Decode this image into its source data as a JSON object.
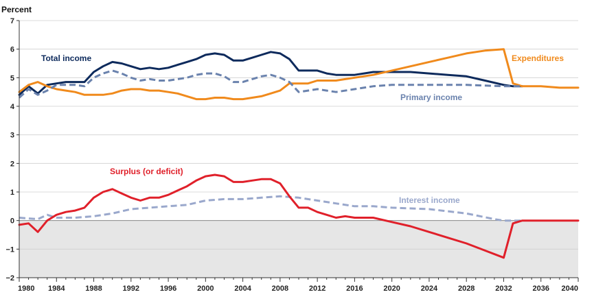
{
  "chart_data": {
    "type": "line",
    "ylabel": "Percent",
    "xlim": [
      1980,
      2040
    ],
    "ylim": [
      -2,
      7
    ],
    "xticks": [
      "1980",
      "1984",
      "1988",
      "1992",
      "1996",
      "2000",
      "2004",
      "2008",
      "2012",
      "2016",
      "2020",
      "2024",
      "2028",
      "2032",
      "2036",
      "2040"
    ],
    "yticks": [
      "−2",
      "−1",
      "0",
      "1",
      "2",
      "3",
      "4",
      "5",
      "6",
      "7"
    ],
    "shaded_negative_region": true,
    "series": [
      {
        "name": "Total income",
        "color": "#0d2a5c",
        "style": "solid",
        "x": [
          1980,
          1981,
          1982,
          1983,
          1984,
          1985,
          1986,
          1987,
          1988,
          1989,
          1990,
          1991,
          1992,
          1993,
          1994,
          1995,
          1996,
          1997,
          1998,
          1999,
          2000,
          2001,
          2002,
          2003,
          2004,
          2005,
          2006,
          2007,
          2008,
          2009,
          2010,
          2011,
          2012,
          2013,
          2014,
          2015,
          2016,
          2017,
          2018,
          2019,
          2020,
          2022,
          2024,
          2026,
          2028,
          2030,
          2032,
          2033,
          2034
        ],
        "values": [
          4.4,
          4.7,
          4.45,
          4.75,
          4.8,
          4.85,
          4.85,
          4.85,
          5.2,
          5.4,
          5.55,
          5.5,
          5.4,
          5.3,
          5.35,
          5.3,
          5.35,
          5.45,
          5.55,
          5.65,
          5.8,
          5.85,
          5.8,
          5.6,
          5.6,
          5.7,
          5.8,
          5.9,
          5.85,
          5.65,
          5.25,
          5.25,
          5.25,
          5.15,
          5.1,
          5.1,
          5.1,
          5.15,
          5.2,
          5.2,
          5.2,
          5.2,
          5.15,
          5.1,
          5.05,
          4.9,
          4.75,
          4.7,
          4.7
        ]
      },
      {
        "name": "Expenditures",
        "color": "#f08a1c",
        "style": "solid",
        "x": [
          1980,
          1981,
          1982,
          1983,
          1984,
          1985,
          1986,
          1987,
          1988,
          1989,
          1990,
          1991,
          1992,
          1993,
          1994,
          1995,
          1996,
          1997,
          1998,
          1999,
          2000,
          2001,
          2002,
          2003,
          2004,
          2005,
          2006,
          2007,
          2008,
          2009,
          2010,
          2011,
          2012,
          2013,
          2014,
          2015,
          2016,
          2018,
          2020,
          2022,
          2024,
          2026,
          2028,
          2030,
          2032,
          2033,
          2034,
          2036,
          2038,
          2040
        ],
        "values": [
          4.5,
          4.75,
          4.85,
          4.7,
          4.6,
          4.55,
          4.5,
          4.4,
          4.4,
          4.4,
          4.45,
          4.55,
          4.6,
          4.6,
          4.55,
          4.55,
          4.5,
          4.45,
          4.35,
          4.25,
          4.25,
          4.3,
          4.3,
          4.25,
          4.25,
          4.3,
          4.35,
          4.45,
          4.55,
          4.8,
          4.8,
          4.8,
          4.9,
          4.9,
          4.9,
          4.95,
          5.0,
          5.1,
          5.25,
          5.4,
          5.55,
          5.7,
          5.85,
          5.95,
          6.0,
          4.8,
          4.7,
          4.7,
          4.65,
          4.65
        ]
      },
      {
        "name": "Primary income",
        "color": "#6a82ad",
        "style": "dashed",
        "x": [
          1980,
          1981,
          1982,
          1983,
          1984,
          1985,
          1986,
          1987,
          1988,
          1989,
          1990,
          1991,
          1992,
          1993,
          1994,
          1995,
          1996,
          1997,
          1998,
          1999,
          2000,
          2001,
          2002,
          2003,
          2004,
          2005,
          2006,
          2007,
          2008,
          2009,
          2010,
          2011,
          2012,
          2013,
          2014,
          2016,
          2018,
          2020,
          2024,
          2028,
          2032,
          2034
        ],
        "values": [
          4.3,
          4.6,
          4.4,
          4.55,
          4.75,
          4.75,
          4.75,
          4.7,
          5.0,
          5.15,
          5.25,
          5.15,
          5.0,
          4.9,
          4.95,
          4.9,
          4.9,
          4.95,
          5.0,
          5.1,
          5.15,
          5.15,
          5.05,
          4.85,
          4.85,
          4.95,
          5.05,
          5.1,
          5.0,
          4.85,
          4.5,
          4.55,
          4.6,
          4.55,
          4.5,
          4.6,
          4.7,
          4.75,
          4.75,
          4.75,
          4.7,
          4.7
        ]
      },
      {
        "name": "Interest income",
        "color": "#9aa8cc",
        "style": "dashed",
        "x": [
          1980,
          1982,
          1983,
          1984,
          1986,
          1988,
          1990,
          1992,
          1994,
          1996,
          1998,
          2000,
          2002,
          2004,
          2006,
          2008,
          2010,
          2012,
          2014,
          2016,
          2018,
          2020,
          2024,
          2028,
          2031,
          2032,
          2033,
          2034
        ],
        "values": [
          0.1,
          0.05,
          0.2,
          0.1,
          0.1,
          0.15,
          0.25,
          0.4,
          0.45,
          0.5,
          0.55,
          0.7,
          0.75,
          0.75,
          0.8,
          0.85,
          0.8,
          0.7,
          0.6,
          0.5,
          0.5,
          0.45,
          0.4,
          0.25,
          0.05,
          0.0,
          0.0,
          0.0
        ]
      },
      {
        "name": "Surplus (or deficit)",
        "color": "#e0202a",
        "style": "solid",
        "x": [
          1980,
          1981,
          1982,
          1983,
          1984,
          1985,
          1986,
          1987,
          1988,
          1989,
          1990,
          1991,
          1992,
          1993,
          1994,
          1995,
          1996,
          1997,
          1998,
          1999,
          2000,
          2001,
          2002,
          2003,
          2004,
          2005,
          2006,
          2007,
          2008,
          2009,
          2010,
          2011,
          2012,
          2013,
          2014,
          2015,
          2016,
          2017,
          2018,
          2020,
          2022,
          2024,
          2026,
          2028,
          2030,
          2032,
          2033,
          2034,
          2036,
          2038,
          2040
        ],
        "values": [
          -0.15,
          -0.1,
          -0.4,
          0.0,
          0.2,
          0.3,
          0.35,
          0.45,
          0.8,
          1.0,
          1.1,
          0.95,
          0.8,
          0.7,
          0.8,
          0.8,
          0.9,
          1.05,
          1.2,
          1.4,
          1.55,
          1.6,
          1.55,
          1.35,
          1.35,
          1.4,
          1.45,
          1.45,
          1.3,
          0.85,
          0.45,
          0.45,
          0.3,
          0.2,
          0.1,
          0.15,
          0.1,
          0.1,
          0.1,
          -0.05,
          -0.2,
          -0.4,
          -0.6,
          -0.8,
          -1.05,
          -1.3,
          -0.1,
          0.0,
          0.0,
          0.0,
          0.0
        ]
      }
    ],
    "labels": {
      "total_income": "Total income",
      "expenditures": "Expenditures",
      "primary_income": "Primary income",
      "surplus": "Surplus (or deficit)",
      "interest_income": "Interest income"
    }
  }
}
